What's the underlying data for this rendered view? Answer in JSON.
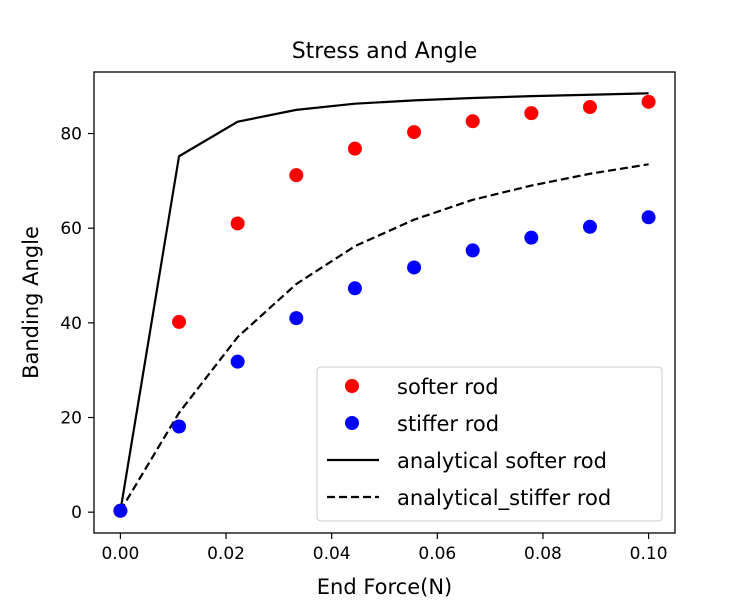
{
  "chart_data": {
    "type": "scatter",
    "title": "Stress and Angle",
    "xlabel": "End Force(N)",
    "ylabel": "Banding Angle",
    "xlim": [
      -0.005,
      0.105
    ],
    "ylim": [
      -4.4,
      93.0
    ],
    "xticks": [
      0.0,
      0.02,
      0.04,
      0.06,
      0.08,
      0.1
    ],
    "xtick_labels": [
      "0.00",
      "0.02",
      "0.04",
      "0.06",
      "0.08",
      "0.10"
    ],
    "yticks": [
      0,
      20,
      40,
      60,
      80
    ],
    "ytick_labels": [
      "0",
      "20",
      "40",
      "60",
      "80"
    ],
    "grid": false,
    "legend_position": "lower-right",
    "series": [
      {
        "name": "softer rod",
        "kind": "scatter",
        "color": "#ff0000",
        "x": [
          0.0,
          0.0111,
          0.0222,
          0.0333,
          0.0444,
          0.0556,
          0.0667,
          0.0778,
          0.0889,
          0.1
        ],
        "y": [
          0.3,
          40.2,
          61.0,
          71.2,
          76.8,
          80.3,
          82.6,
          84.3,
          85.6,
          86.7
        ]
      },
      {
        "name": "stiffer rod",
        "kind": "scatter",
        "color": "#0000ff",
        "x": [
          0.0,
          0.0111,
          0.0222,
          0.0333,
          0.0444,
          0.0556,
          0.0667,
          0.0778,
          0.0889,
          0.1
        ],
        "y": [
          0.3,
          18.1,
          31.8,
          41.0,
          47.3,
          51.7,
          55.3,
          58.0,
          60.3,
          62.3
        ]
      },
      {
        "name": "analytical softer rod",
        "kind": "line",
        "dash": "solid",
        "color": "#000000",
        "x": [
          0.0,
          0.0111,
          0.0222,
          0.0333,
          0.0444,
          0.0556,
          0.0667,
          0.0778,
          0.0889,
          0.1
        ],
        "y": [
          0.3,
          75.2,
          82.5,
          85.0,
          86.3,
          87.0,
          87.5,
          87.9,
          88.2,
          88.5
        ]
      },
      {
        "name": "analytical_stiffer rod",
        "kind": "line",
        "dash": "dashed",
        "color": "#000000",
        "x": [
          0.0,
          0.0111,
          0.0222,
          0.0333,
          0.0444,
          0.0556,
          0.0667,
          0.0778,
          0.0889,
          0.1
        ],
        "y": [
          0.3,
          21.0,
          37.0,
          48.2,
          56.2,
          61.8,
          66.0,
          69.0,
          71.5,
          73.5
        ]
      }
    ]
  }
}
